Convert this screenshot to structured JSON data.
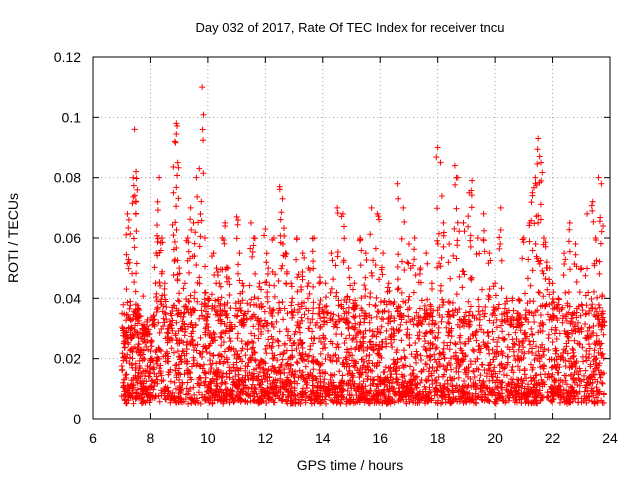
{
  "chart_data": {
    "type": "scatter",
    "title": "Day 032 of 2017, Rate Of TEC Index for receiver tncu",
    "xlabel": "GPS time / hours",
    "ylabel": "ROTI / TECUs",
    "xlim": [
      6,
      24
    ],
    "ylim": [
      0,
      0.12
    ],
    "x_ticks": [
      6,
      8,
      10,
      12,
      14,
      16,
      18,
      20,
      22,
      24
    ],
    "x_tick_labels": [
      "6",
      "8",
      "10",
      "12",
      "14",
      "16",
      "18",
      "20",
      "22",
      "24"
    ],
    "y_ticks": [
      0,
      0.02,
      0.04,
      0.06,
      0.08,
      0.1,
      0.12
    ],
    "y_tick_labels": [
      "0",
      "0.02",
      "0.04",
      "0.06",
      "0.08",
      "0.1",
      "0.12"
    ],
    "grid": true,
    "marker": "+",
    "series_color": "#ff0000",
    "series": [
      {
        "name": "ROTI",
        "points": [
          [
            7.05,
            0.012
          ],
          [
            7.1,
            0.025
          ],
          [
            7.15,
            0.02
          ],
          [
            7.2,
            0.068
          ],
          [
            7.25,
            0.066
          ],
          [
            7.3,
            0.03
          ],
          [
            7.35,
            0.018
          ],
          [
            7.4,
            0.08
          ],
          [
            7.45,
            0.096
          ],
          [
            7.5,
            0.082
          ],
          [
            7.55,
            0.035
          ],
          [
            7.6,
            0.022
          ],
          [
            7.7,
            0.015
          ],
          [
            7.8,
            0.03
          ],
          [
            7.9,
            0.028
          ],
          [
            8.0,
            0.02
          ],
          [
            8.1,
            0.034
          ],
          [
            8.2,
            0.055
          ],
          [
            8.25,
            0.072
          ],
          [
            8.3,
            0.08
          ],
          [
            8.4,
            0.06
          ],
          [
            8.5,
            0.045
          ],
          [
            8.6,
            0.02
          ],
          [
            8.7,
            0.035
          ],
          [
            8.8,
            0.075
          ],
          [
            8.85,
            0.092
          ],
          [
            8.9,
            0.098
          ],
          [
            8.95,
            0.085
          ],
          [
            9.0,
            0.05
          ],
          [
            9.1,
            0.03
          ],
          [
            9.2,
            0.045
          ],
          [
            9.3,
            0.06
          ],
          [
            9.4,
            0.07
          ],
          [
            9.5,
            0.065
          ],
          [
            9.6,
            0.08
          ],
          [
            9.7,
            0.083
          ],
          [
            9.8,
            0.11
          ],
          [
            9.9,
            0.06
          ],
          [
            10.0,
            0.04
          ],
          [
            10.1,
            0.025
          ],
          [
            10.2,
            0.055
          ],
          [
            10.3,
            0.05
          ],
          [
            10.4,
            0.045
          ],
          [
            10.5,
            0.06
          ],
          [
            10.6,
            0.065
          ],
          [
            10.7,
            0.05
          ],
          [
            10.8,
            0.03
          ],
          [
            11.0,
            0.067
          ],
          [
            11.1,
            0.055
          ],
          [
            11.2,
            0.045
          ],
          [
            11.3,
            0.035
          ],
          [
            11.5,
            0.065
          ],
          [
            11.6,
            0.06
          ],
          [
            11.8,
            0.045
          ],
          [
            12.0,
            0.063
          ],
          [
            12.1,
            0.05
          ],
          [
            12.3,
            0.06
          ],
          [
            12.5,
            0.077
          ],
          [
            12.6,
            0.073
          ],
          [
            12.7,
            0.055
          ],
          [
            12.9,
            0.045
          ],
          [
            13.1,
            0.06
          ],
          [
            13.3,
            0.055
          ],
          [
            13.5,
            0.05
          ],
          [
            13.7,
            0.06
          ],
          [
            13.9,
            0.047
          ],
          [
            14.1,
            0.045
          ],
          [
            14.3,
            0.055
          ],
          [
            14.5,
            0.07
          ],
          [
            14.7,
            0.068
          ],
          [
            14.9,
            0.05
          ],
          [
            15.1,
            0.045
          ],
          [
            15.3,
            0.06
          ],
          [
            15.5,
            0.055
          ],
          [
            15.7,
            0.07
          ],
          [
            15.9,
            0.068
          ],
          [
            16.1,
            0.055
          ],
          [
            16.3,
            0.045
          ],
          [
            16.6,
            0.078
          ],
          [
            16.8,
            0.07
          ],
          [
            17.0,
            0.058
          ],
          [
            17.2,
            0.06
          ],
          [
            17.4,
            0.05
          ],
          [
            17.6,
            0.055
          ],
          [
            17.8,
            0.045
          ],
          [
            18.0,
            0.09
          ],
          [
            18.1,
            0.085
          ],
          [
            18.2,
            0.065
          ],
          [
            18.4,
            0.058
          ],
          [
            18.6,
            0.084
          ],
          [
            18.7,
            0.08
          ],
          [
            18.9,
            0.065
          ],
          [
            19.1,
            0.075
          ],
          [
            19.2,
            0.079
          ],
          [
            19.4,
            0.06
          ],
          [
            19.6,
            0.068
          ],
          [
            19.8,
            0.055
          ],
          [
            20.0,
            0.045
          ],
          [
            20.2,
            0.07
          ],
          [
            20.4,
            0.04
          ],
          [
            20.6,
            0.04
          ],
          [
            20.8,
            0.035
          ],
          [
            21.0,
            0.06
          ],
          [
            21.2,
            0.065
          ],
          [
            21.3,
            0.075
          ],
          [
            21.4,
            0.08
          ],
          [
            21.5,
            0.093
          ],
          [
            21.55,
            0.087
          ],
          [
            21.6,
            0.085
          ],
          [
            21.7,
            0.06
          ],
          [
            21.8,
            0.052
          ],
          [
            21.9,
            0.05
          ],
          [
            22.0,
            0.045
          ],
          [
            22.2,
            0.04
          ],
          [
            22.4,
            0.055
          ],
          [
            22.6,
            0.065
          ],
          [
            22.8,
            0.058
          ],
          [
            23.0,
            0.05
          ],
          [
            23.2,
            0.068
          ],
          [
            23.4,
            0.072
          ],
          [
            23.5,
            0.06
          ],
          [
            23.6,
            0.08
          ],
          [
            23.7,
            0.078
          ],
          [
            23.75,
            0.035
          ]
        ]
      }
    ],
    "dense_band": {
      "note": "Dense cloud of ROTI samples between 7.0 and 23.8 h, mostly 0.005–0.04 TECU/s",
      "x_range": [
        7.0,
        23.8
      ],
      "y_range": [
        0.005,
        0.04
      ]
    }
  }
}
